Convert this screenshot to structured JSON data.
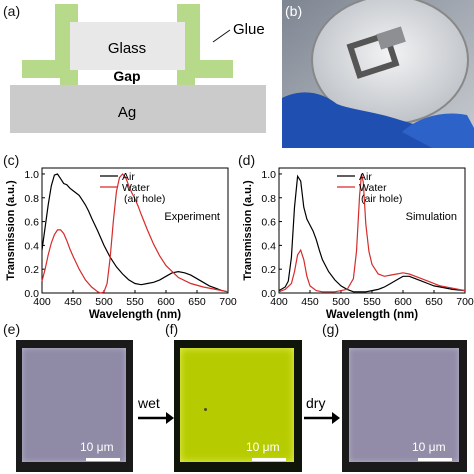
{
  "panels": {
    "a": "(a)",
    "b": "(b)",
    "c": "(c)",
    "d": "(d)",
    "e": "(e)",
    "f": "(f)",
    "g": "(g)"
  },
  "schematic": {
    "glass": "Glass",
    "glue": "Glue",
    "gap": "Gap",
    "ag": "Ag",
    "colors": {
      "glue": "#b7d98a",
      "glass": "#e8e8e8",
      "ag": "#c9c9c9"
    }
  },
  "arrows": {
    "wet": "wet",
    "dry": "dry"
  },
  "scalebars": {
    "e": "10 μm",
    "f": "10 μm",
    "g": "10 μm"
  },
  "chart_data": [
    {
      "type": "line",
      "panel": "c",
      "annotation": "Experiment",
      "xlabel": "Wavelength (nm)",
      "ylabel": "Transmission (a.u.)",
      "xlim": [
        400,
        700
      ],
      "ylim": [
        0,
        1.05
      ],
      "xticks": [
        400,
        450,
        500,
        550,
        600,
        650,
        700
      ],
      "yticks": [
        0.0,
        0.2,
        0.4,
        0.6,
        0.8,
        1.0
      ],
      "legend_position": "top-left",
      "series": [
        {
          "name": "Air",
          "color": "#000000",
          "x": [
            400,
            405,
            410,
            415,
            420,
            425,
            430,
            435,
            440,
            445,
            450,
            455,
            460,
            465,
            470,
            475,
            480,
            490,
            500,
            510,
            520,
            530,
            540,
            550,
            560,
            570,
            580,
            590,
            600,
            610,
            620,
            630,
            640,
            650,
            660,
            670,
            680,
            690,
            700
          ],
          "y": [
            0.36,
            0.55,
            0.74,
            0.9,
            0.99,
            1.0,
            0.96,
            0.92,
            0.91,
            0.88,
            0.86,
            0.84,
            0.82,
            0.78,
            0.74,
            0.69,
            0.63,
            0.52,
            0.4,
            0.3,
            0.22,
            0.16,
            0.11,
            0.08,
            0.07,
            0.08,
            0.09,
            0.11,
            0.14,
            0.17,
            0.18,
            0.17,
            0.15,
            0.12,
            0.09,
            0.06,
            0.04,
            0.02,
            0.01
          ]
        },
        {
          "name": "Water",
          "sublabel": "(air hole)",
          "color": "#d62b2b",
          "x": [
            400,
            405,
            410,
            415,
            420,
            425,
            430,
            435,
            440,
            445,
            450,
            460,
            470,
            480,
            490,
            495,
            500,
            505,
            510,
            515,
            520,
            525,
            530,
            535,
            540,
            545,
            550,
            555,
            560,
            570,
            580,
            590,
            600,
            620,
            640,
            660,
            680,
            700
          ],
          "y": [
            0.1,
            0.2,
            0.32,
            0.42,
            0.49,
            0.53,
            0.53,
            0.5,
            0.44,
            0.37,
            0.31,
            0.2,
            0.11,
            0.05,
            0.01,
            0.0,
            0.01,
            0.08,
            0.3,
            0.6,
            0.85,
            0.97,
            1.0,
            0.97,
            0.9,
            0.84,
            0.79,
            0.73,
            0.66,
            0.53,
            0.41,
            0.31,
            0.23,
            0.13,
            0.08,
            0.05,
            0.03,
            0.01
          ]
        }
      ]
    },
    {
      "type": "line",
      "panel": "d",
      "annotation": "Simulation",
      "xlabel": "Wavelength (nm)",
      "ylabel": "Transmission (a.u.)",
      "xlim": [
        400,
        700
      ],
      "ylim": [
        0,
        1.05
      ],
      "xticks": [
        400,
        450,
        500,
        550,
        600,
        650,
        700
      ],
      "yticks": [
        0.0,
        0.2,
        0.4,
        0.6,
        0.8,
        1.0
      ],
      "legend_position": "top-left",
      "series": [
        {
          "name": "Air",
          "color": "#000000",
          "x": [
            400,
            410,
            415,
            420,
            425,
            430,
            435,
            440,
            445,
            450,
            455,
            460,
            465,
            470,
            480,
            490,
            500,
            510,
            520,
            530,
            540,
            550,
            560,
            570,
            580,
            590,
            600,
            610,
            620,
            630,
            640,
            650,
            660,
            680,
            700
          ],
          "y": [
            0.02,
            0.05,
            0.1,
            0.3,
            0.72,
            0.98,
            0.94,
            0.72,
            0.62,
            0.57,
            0.52,
            0.45,
            0.36,
            0.28,
            0.18,
            0.11,
            0.06,
            0.03,
            0.01,
            0.01,
            0.01,
            0.02,
            0.03,
            0.05,
            0.08,
            0.11,
            0.14,
            0.14,
            0.12,
            0.1,
            0.08,
            0.06,
            0.05,
            0.03,
            0.02
          ]
        },
        {
          "name": "Water",
          "sublabel": "(air hole)",
          "color": "#d62b2b",
          "x": [
            400,
            410,
            420,
            425,
            430,
            435,
            440,
            445,
            450,
            460,
            470,
            490,
            510,
            520,
            525,
            530,
            533,
            536,
            540,
            545,
            550,
            560,
            570,
            580,
            590,
            600,
            610,
            620,
            640,
            660,
            680,
            700
          ],
          "y": [
            0.01,
            0.03,
            0.08,
            0.18,
            0.32,
            0.36,
            0.28,
            0.14,
            0.06,
            0.02,
            0.01,
            0.01,
            0.03,
            0.12,
            0.35,
            0.82,
            1.0,
            0.93,
            0.58,
            0.35,
            0.24,
            0.16,
            0.14,
            0.15,
            0.16,
            0.17,
            0.16,
            0.14,
            0.1,
            0.06,
            0.04,
            0.02
          ]
        }
      ]
    }
  ]
}
